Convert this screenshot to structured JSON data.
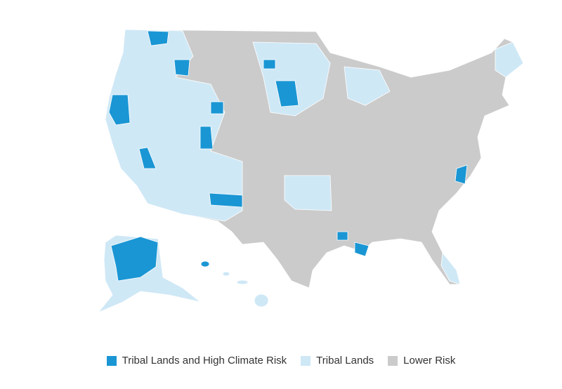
{
  "legend": {
    "items": [
      {
        "label": "Tribal Lands and High Climate Risk",
        "color": "#1a96d4"
      },
      {
        "label": "Tribal Lands",
        "color": "#cfe8f6"
      },
      {
        "label": "Lower Risk",
        "color": "#cbcbcb"
      }
    ]
  }
}
